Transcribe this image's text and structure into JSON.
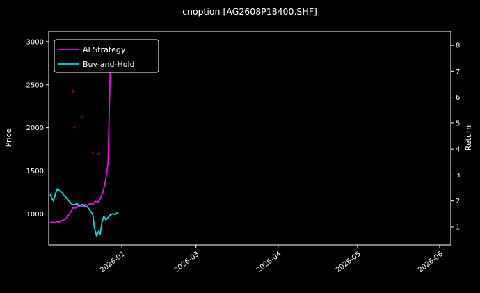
{
  "title": "cnoption [AG2608P18400.SHF]",
  "colors": {
    "background": "#000000",
    "axes": "#ffffff",
    "text": "#ffffff",
    "ai_strategy": "#ff00ff",
    "buy_and_hold": "#00e0e0",
    "trade_markers": "#aa0000"
  },
  "chart_data": {
    "type": "line",
    "title": "cnoption [AG2608P18400.SHF]",
    "xlabel": "",
    "ylabel_left": "Price",
    "ylabel_right": "Return",
    "x_unit": "days since 2026-01-01",
    "xlim": [
      3.4,
      155.2
    ],
    "x_ticks": [
      {
        "pos": 31,
        "label": "2026-02"
      },
      {
        "pos": 59,
        "label": "2026-03"
      },
      {
        "pos": 90,
        "label": "2026-04"
      },
      {
        "pos": 120,
        "label": "2026-05"
      },
      {
        "pos": 151,
        "label": "2026-06"
      }
    ],
    "price_ylim": [
      640,
      3120
    ],
    "price_ticks": [
      1000,
      1500,
      2000,
      2500,
      3000
    ],
    "return_ylim": [
      0.3,
      8.54
    ],
    "return_ticks": [
      1,
      2,
      3,
      4,
      5,
      6,
      7,
      8
    ],
    "grid": false,
    "legend_position": "upper left",
    "series": [
      {
        "name": "AI Strategy",
        "color": "#ff00ff",
        "axis": "left",
        "points": [
          [
            4.0,
            900
          ],
          [
            4.8,
            905
          ],
          [
            5.6,
            895
          ],
          [
            6.4,
            912
          ],
          [
            7.2,
            905
          ],
          [
            8.0,
            918
          ],
          [
            9.0,
            930
          ],
          [
            10.0,
            948
          ],
          [
            11.0,
            995
          ],
          [
            12.0,
            1035
          ],
          [
            12.7,
            1080
          ],
          [
            13.5,
            1068
          ],
          [
            14.2,
            1092
          ],
          [
            15.0,
            1100
          ],
          [
            16.0,
            1085
          ],
          [
            17.0,
            1112
          ],
          [
            18.0,
            1100
          ],
          [
            19.0,
            1122
          ],
          [
            20.0,
            1112
          ],
          [
            21.0,
            1148
          ],
          [
            22.0,
            1135
          ],
          [
            23.0,
            1185
          ],
          [
            24.0,
            1265
          ],
          [
            25.0,
            1410
          ],
          [
            25.8,
            1600
          ],
          [
            26.3,
            2250
          ],
          [
            26.8,
            2860
          ],
          [
            27.4,
            2960
          ]
        ]
      },
      {
        "name": "Buy-and-Hold",
        "color": "#00e0e0",
        "axis": "left",
        "points": [
          [
            4.0,
            1225
          ],
          [
            4.6,
            1178
          ],
          [
            5.2,
            1150
          ],
          [
            6.0,
            1242
          ],
          [
            6.8,
            1295
          ],
          [
            7.5,
            1268
          ],
          [
            8.3,
            1248
          ],
          [
            9.0,
            1222
          ],
          [
            10.0,
            1192
          ],
          [
            11.0,
            1152
          ],
          [
            12.0,
            1118
          ],
          [
            13.0,
            1102
          ],
          [
            14.0,
            1122
          ],
          [
            15.0,
            1092
          ],
          [
            16.0,
            1112
          ],
          [
            17.0,
            1088
          ],
          [
            18.0,
            1082
          ],
          [
            19.0,
            1038
          ],
          [
            20.0,
            998
          ],
          [
            20.7,
            832
          ],
          [
            21.5,
            745
          ],
          [
            22.2,
            800
          ],
          [
            22.8,
            762
          ],
          [
            23.5,
            902
          ],
          [
            24.2,
            975
          ],
          [
            25.0,
            930
          ],
          [
            25.8,
            958
          ],
          [
            26.6,
            988
          ],
          [
            27.5,
            1002
          ],
          [
            28.5,
            992
          ],
          [
            29.5,
            1022
          ]
        ]
      }
    ],
    "markers": {
      "name": "trade-markers",
      "color": "#aa0000",
      "points": [
        [
          12.4,
          2425
        ],
        [
          13.0,
          2005
        ],
        [
          15.8,
          2134
        ],
        [
          20.0,
          1714
        ],
        [
          22.3,
          1698
        ]
      ]
    }
  }
}
